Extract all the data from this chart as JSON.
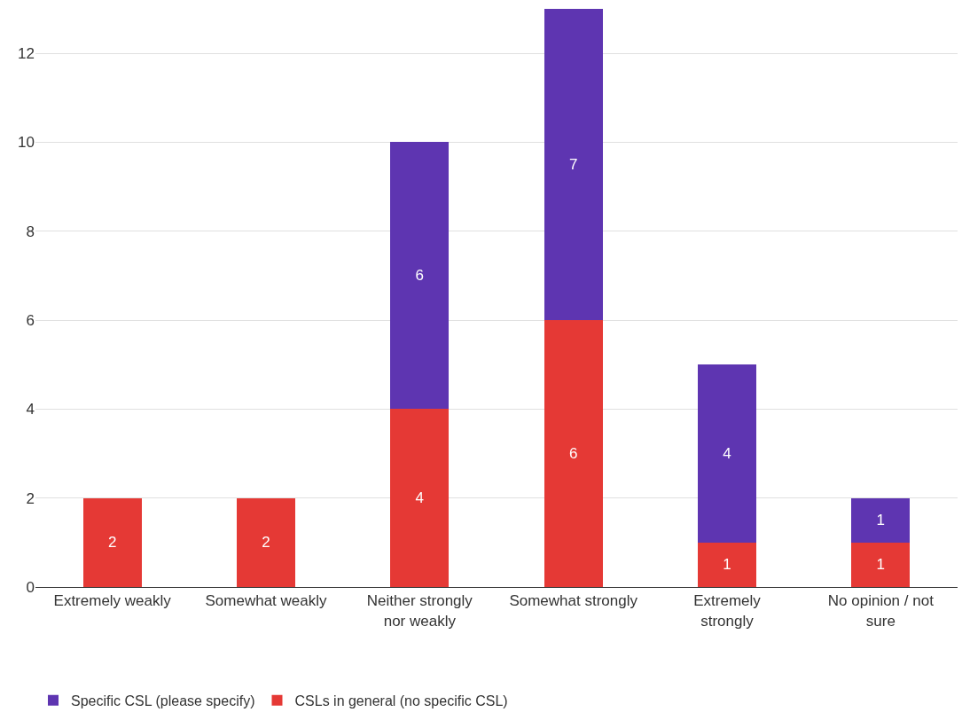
{
  "chart_data": {
    "type": "bar",
    "stacked": true,
    "categories": [
      "Extremely weakly",
      "Somewhat weakly",
      "Neither strongly nor weakly",
      "Somewhat strongly",
      "Extremely strongly",
      "No opinion / not sure"
    ],
    "series": [
      {
        "name": "CSLs in general (no specific CSL)",
        "color": "#e53935",
        "values": [
          2,
          2,
          4,
          6,
          1,
          1
        ]
      },
      {
        "name": "Specific CSL (please specify)",
        "color": "#5e35b1",
        "values": [
          null,
          null,
          6,
          7,
          4,
          1
        ]
      }
    ],
    "ylim": [
      0,
      13
    ],
    "yticks": [
      0,
      2,
      4,
      6,
      8,
      10,
      12
    ],
    "grid": "y",
    "legend": "bottom left",
    "data_labels": true
  }
}
